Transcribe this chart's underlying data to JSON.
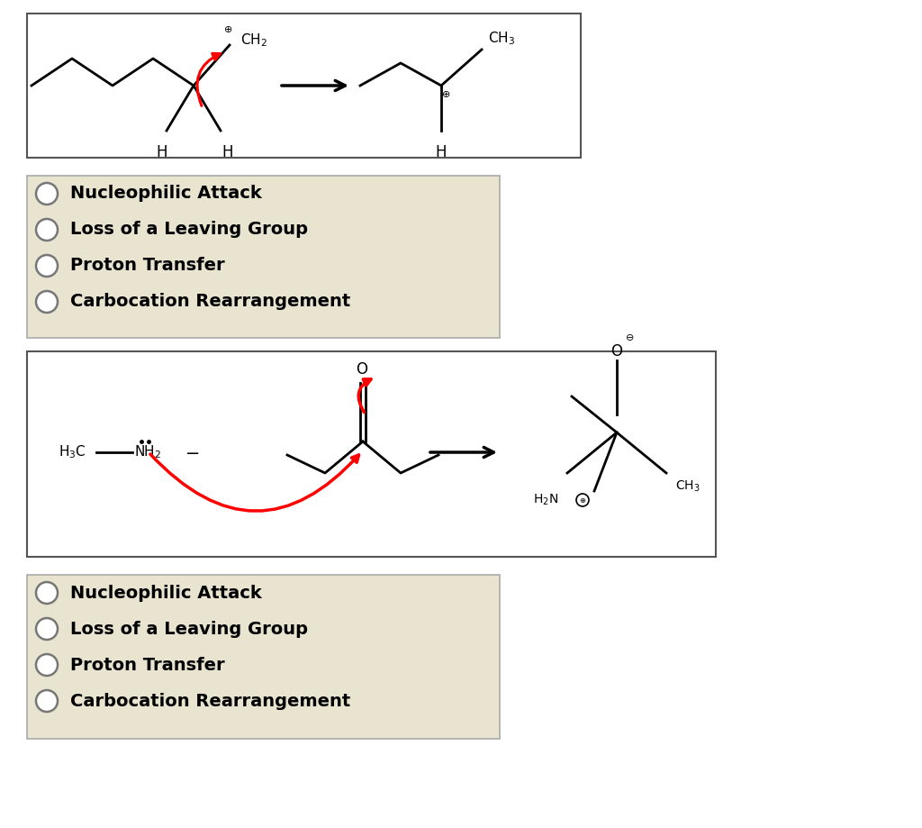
{
  "bg_color": "#ffffff",
  "options": [
    "Nucleophilic Attack",
    "Loss of a Leaving Group",
    "Proton Transfer",
    "Carbocation Rearrangement"
  ],
  "box_bg": "#e8e4d0",
  "box_edge": "#aaaaaa",
  "text_color": "#000000",
  "font_size": 14
}
